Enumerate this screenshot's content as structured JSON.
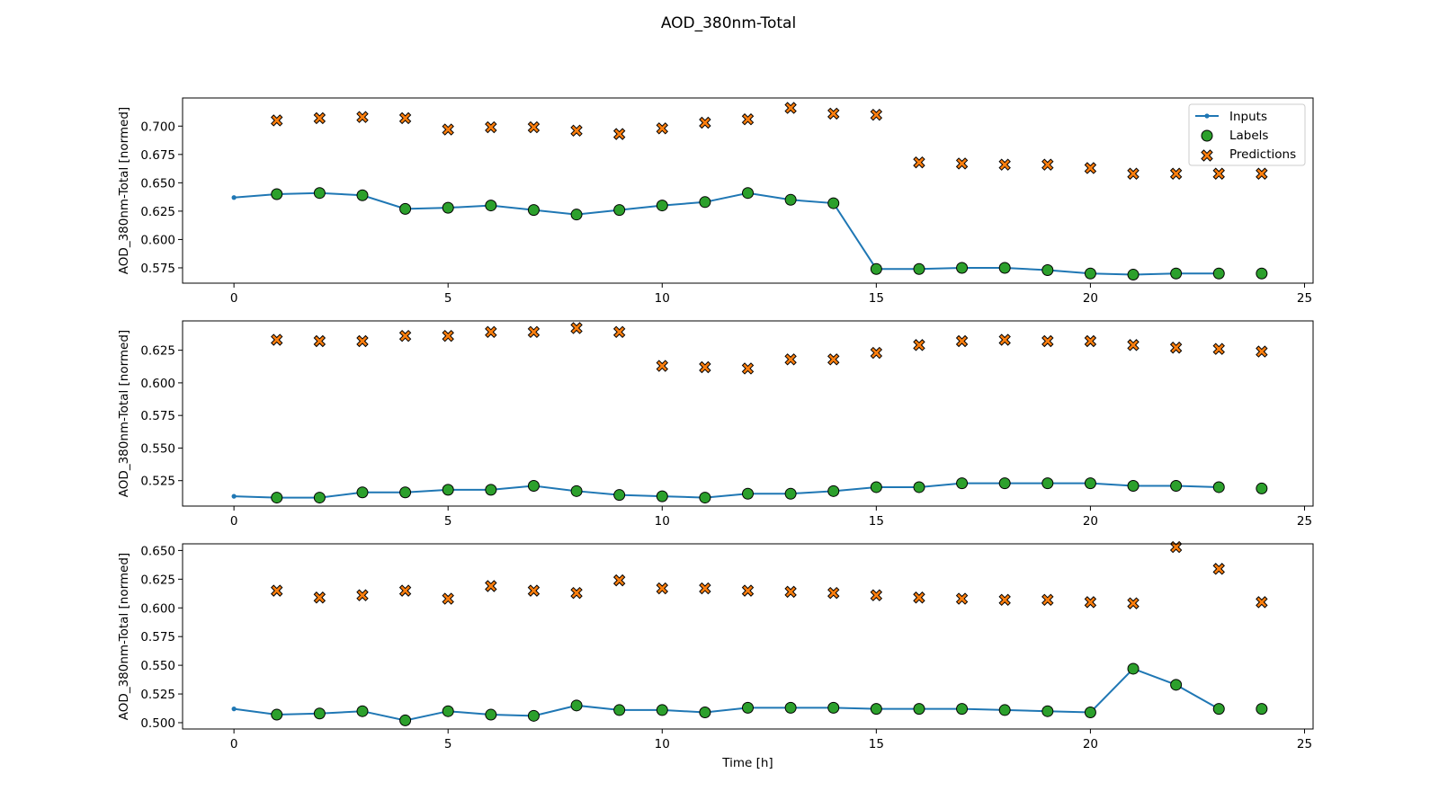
{
  "figure_title": "AOD_380nm-Total",
  "colors": {
    "inputs": "#1f77b4",
    "labels": "#2ca02c",
    "predictions": "#ff7f0e",
    "edge": "#000000"
  },
  "legend": {
    "inputs": "Inputs",
    "labels": "Labels",
    "predictions": "Predictions",
    "placement": "top-right"
  },
  "chart_data": [
    {
      "type": "line",
      "ylabel": "AOD_380nm-Total [normed]",
      "xlabel": "",
      "xlim": [
        -1.2,
        25.2
      ],
      "ylim": [
        0.5615,
        0.7248
      ],
      "xticks": [
        0,
        5,
        10,
        15,
        20,
        25
      ],
      "yticks": [
        0.575,
        0.6,
        0.625,
        0.65,
        0.675,
        0.7
      ],
      "ytick_labels": [
        "0.575",
        "0.600",
        "0.625",
        "0.650",
        "0.675",
        "0.700"
      ],
      "grid": false,
      "legend": true,
      "series": [
        {
          "name": "Inputs",
          "kind": "line",
          "x": [
            0,
            1,
            2,
            3,
            4,
            5,
            6,
            7,
            8,
            9,
            10,
            11,
            12,
            13,
            14,
            15,
            16,
            17,
            18,
            19,
            20,
            21,
            22,
            23
          ],
          "values": [
            0.637,
            0.64,
            0.641,
            0.639,
            0.627,
            0.628,
            0.63,
            0.626,
            0.622,
            0.626,
            0.63,
            0.633,
            0.641,
            0.635,
            0.632,
            0.574,
            0.574,
            0.575,
            0.575,
            0.573,
            0.57,
            0.569,
            0.57,
            0.57
          ]
        },
        {
          "name": "Labels",
          "kind": "scatter",
          "x": [
            1,
            2,
            3,
            4,
            5,
            6,
            7,
            8,
            9,
            10,
            11,
            12,
            13,
            14,
            15,
            16,
            17,
            18,
            19,
            20,
            21,
            22,
            23,
            24
          ],
          "values": [
            0.64,
            0.641,
            0.639,
            0.627,
            0.628,
            0.63,
            0.626,
            0.622,
            0.626,
            0.63,
            0.633,
            0.641,
            0.635,
            0.632,
            0.574,
            0.574,
            0.575,
            0.575,
            0.573,
            0.57,
            0.569,
            0.57,
            0.57,
            0.57
          ]
        },
        {
          "name": "Predictions",
          "kind": "scatter",
          "x": [
            1,
            2,
            3,
            4,
            5,
            6,
            7,
            8,
            9,
            10,
            11,
            12,
            13,
            14,
            15,
            16,
            17,
            18,
            19,
            20,
            21,
            22,
            23,
            24
          ],
          "values": [
            0.705,
            0.707,
            0.708,
            0.707,
            0.697,
            0.699,
            0.699,
            0.696,
            0.693,
            0.698,
            0.703,
            0.706,
            0.716,
            0.711,
            0.71,
            0.668,
            0.667,
            0.666,
            0.666,
            0.663,
            0.658,
            0.658,
            0.658,
            0.658
          ]
        }
      ]
    },
    {
      "type": "line",
      "ylabel": "AOD_380nm-Total [normed]",
      "xlabel": "",
      "xlim": [
        -1.2,
        25.2
      ],
      "ylim": [
        0.5055,
        0.6475
      ],
      "xticks": [
        0,
        5,
        10,
        15,
        20,
        25
      ],
      "yticks": [
        0.525,
        0.55,
        0.575,
        0.6,
        0.625
      ],
      "ytick_labels": [
        "0.525",
        "0.550",
        "0.575",
        "0.600",
        "0.625"
      ],
      "grid": false,
      "legend": false,
      "series": [
        {
          "name": "Inputs",
          "kind": "line",
          "x": [
            0,
            1,
            2,
            3,
            4,
            5,
            6,
            7,
            8,
            9,
            10,
            11,
            12,
            13,
            14,
            15,
            16,
            17,
            18,
            19,
            20,
            21,
            22,
            23
          ],
          "values": [
            0.513,
            0.512,
            0.512,
            0.516,
            0.516,
            0.518,
            0.518,
            0.521,
            0.517,
            0.514,
            0.513,
            0.512,
            0.515,
            0.515,
            0.517,
            0.52,
            0.52,
            0.523,
            0.523,
            0.523,
            0.523,
            0.521,
            0.521,
            0.52
          ]
        },
        {
          "name": "Labels",
          "kind": "scatter",
          "x": [
            1,
            2,
            3,
            4,
            5,
            6,
            7,
            8,
            9,
            10,
            11,
            12,
            13,
            14,
            15,
            16,
            17,
            18,
            19,
            20,
            21,
            22,
            23,
            24
          ],
          "values": [
            0.512,
            0.512,
            0.516,
            0.516,
            0.518,
            0.518,
            0.521,
            0.517,
            0.514,
            0.513,
            0.512,
            0.515,
            0.515,
            0.517,
            0.52,
            0.52,
            0.523,
            0.523,
            0.523,
            0.523,
            0.521,
            0.521,
            0.52,
            0.519
          ]
        },
        {
          "name": "Predictions",
          "kind": "scatter",
          "x": [
            1,
            2,
            3,
            4,
            5,
            6,
            7,
            8,
            9,
            10,
            11,
            12,
            13,
            14,
            15,
            16,
            17,
            18,
            19,
            20,
            21,
            22,
            23,
            24
          ],
          "values": [
            0.633,
            0.632,
            0.632,
            0.636,
            0.636,
            0.639,
            0.639,
            0.642,
            0.639,
            0.613,
            0.612,
            0.611,
            0.618,
            0.618,
            0.623,
            0.629,
            0.632,
            0.633,
            0.632,
            0.632,
            0.629,
            0.627,
            0.626,
            0.624
          ]
        }
      ]
    },
    {
      "type": "line",
      "ylabel": "AOD_380nm-Total [normed]",
      "xlabel": "Time [h]",
      "xlim": [
        -1.2,
        25.2
      ],
      "ylim": [
        0.4945,
        0.6558
      ],
      "xticks": [
        0,
        5,
        10,
        15,
        20,
        25
      ],
      "yticks": [
        0.5,
        0.525,
        0.55,
        0.575,
        0.6,
        0.625,
        0.65
      ],
      "ytick_labels": [
        "0.500",
        "0.525",
        "0.550",
        "0.575",
        "0.600",
        "0.625",
        "0.650"
      ],
      "grid": false,
      "legend": false,
      "series": [
        {
          "name": "Inputs",
          "kind": "line",
          "x": [
            0,
            1,
            2,
            3,
            4,
            5,
            6,
            7,
            8,
            9,
            10,
            11,
            12,
            13,
            14,
            15,
            16,
            17,
            18,
            19,
            20,
            21,
            22,
            23
          ],
          "values": [
            0.512,
            0.507,
            0.508,
            0.51,
            0.502,
            0.51,
            0.507,
            0.506,
            0.515,
            0.511,
            0.511,
            0.509,
            0.513,
            0.513,
            0.513,
            0.512,
            0.512,
            0.512,
            0.511,
            0.51,
            0.509,
            0.547,
            0.533,
            0.512
          ]
        },
        {
          "name": "Labels",
          "kind": "scatter",
          "x": [
            1,
            2,
            3,
            4,
            5,
            6,
            7,
            8,
            9,
            10,
            11,
            12,
            13,
            14,
            15,
            16,
            17,
            18,
            19,
            20,
            21,
            22,
            23,
            24
          ],
          "values": [
            0.507,
            0.508,
            0.51,
            0.502,
            0.51,
            0.507,
            0.506,
            0.515,
            0.511,
            0.511,
            0.509,
            0.513,
            0.513,
            0.513,
            0.512,
            0.512,
            0.512,
            0.511,
            0.51,
            0.509,
            0.547,
            0.533,
            0.512,
            0.512
          ]
        },
        {
          "name": "Predictions",
          "kind": "scatter",
          "x": [
            1,
            2,
            3,
            4,
            5,
            6,
            7,
            8,
            9,
            10,
            11,
            12,
            13,
            14,
            15,
            16,
            17,
            18,
            19,
            20,
            21,
            22,
            23,
            24
          ],
          "values": [
            0.615,
            0.609,
            0.611,
            0.615,
            0.608,
            0.619,
            0.615,
            0.613,
            0.624,
            0.617,
            0.617,
            0.615,
            0.614,
            0.613,
            0.611,
            0.609,
            0.608,
            0.607,
            0.607,
            0.605,
            0.604,
            0.653,
            0.634,
            0.605
          ]
        }
      ]
    }
  ]
}
